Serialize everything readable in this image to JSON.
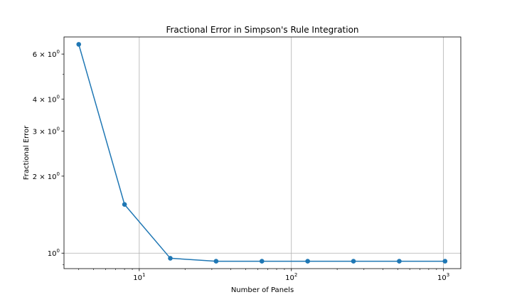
{
  "chart_data": {
    "type": "line",
    "title": "Fractional Error in Simpson's Rule Integration",
    "xlabel": "Number of Panels",
    "ylabel": "Fractional Error",
    "xscale": "log",
    "yscale": "log",
    "grid": "major x and y",
    "xlim": [
      3.2,
      1300
    ],
    "ylim": [
      0.87,
      7.0
    ],
    "color": "#1f77b4",
    "x": [
      4,
      8,
      16,
      32,
      64,
      128,
      256,
      512,
      1024
    ],
    "y": [
      6.55,
      1.55,
      0.955,
      0.93,
      0.93,
      0.93,
      0.93,
      0.93,
      0.93
    ],
    "xticks": [
      {
        "value": 10,
        "base": "10",
        "exp": "1"
      },
      {
        "value": 100,
        "base": "10",
        "exp": "2"
      },
      {
        "value": 1000,
        "base": "10",
        "exp": "3"
      }
    ],
    "yticks": [
      {
        "value": 1,
        "mant": "10",
        "exp": "0",
        "mult": ""
      },
      {
        "value": 2,
        "mant": "10",
        "exp": "0",
        "mult": "2 × "
      },
      {
        "value": 3,
        "mant": "10",
        "exp": "0",
        "mult": "3 × "
      },
      {
        "value": 4,
        "mant": "10",
        "exp": "0",
        "mult": "4 × "
      },
      {
        "value": 6,
        "mant": "10",
        "exp": "0",
        "mult": "6 × "
      }
    ]
  }
}
